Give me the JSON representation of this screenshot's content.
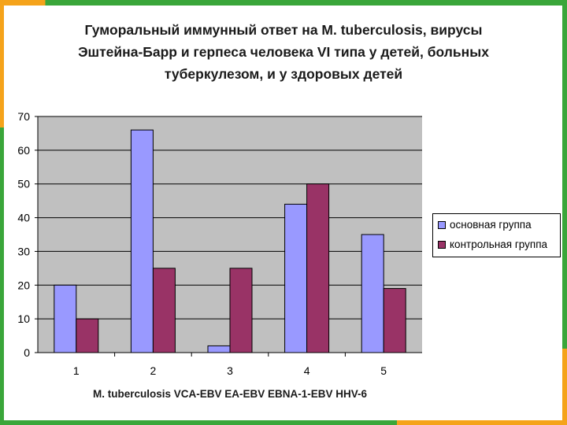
{
  "colors": {
    "series1": "#9999ff",
    "series2": "#993366",
    "plot_bg": "#c0c0c0"
  },
  "chart_data": {
    "type": "bar",
    "title": [
      "Гуморальный иммунный ответ на M. tuberculosis, вирусы",
      "Эштейна-Барр и герпеса человека VI типа у детей, больных",
      "туберкулезом, и у здоровых детей"
    ],
    "xlabel": "M. tuberculosis VCA-EBV EA-EBV EBNA-1-EBV HHV-6",
    "ylabel": "",
    "categories": [
      "1",
      "2",
      "3",
      "4",
      "5"
    ],
    "ylim": [
      0,
      70
    ],
    "yticks": [
      "0",
      "10",
      "20",
      "30",
      "40",
      "50",
      "60",
      "70"
    ],
    "grid": true,
    "legend_position": "right",
    "series": [
      {
        "name": "основная группа",
        "values": [
          20,
          66,
          2,
          44,
          35
        ]
      },
      {
        "name": "контрольная группа",
        "values": [
          10,
          25,
          25,
          50,
          19
        ]
      }
    ]
  }
}
